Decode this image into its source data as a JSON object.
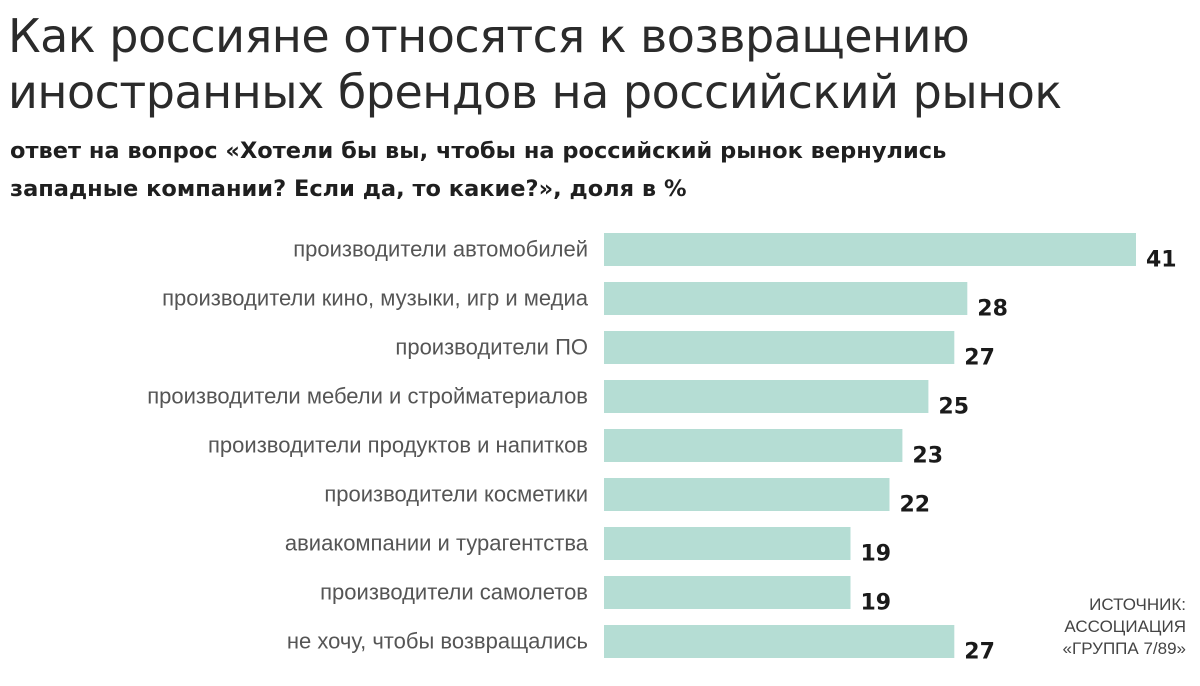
{
  "header": {
    "title_line1": "Как россияне относятся к возвращению",
    "title_line2": "иностранных брендов на российский рынок",
    "subtitle_line1": "ответ на вопрос «Хотели бы вы, чтобы на российский рынок вернулись",
    "subtitle_line2": "западные компании? Если да, то какие?», доля в %"
  },
  "source": {
    "line1": "ИСТОЧНИК:",
    "line2": "АССОЦИАЦИЯ",
    "line3": "«ГРУППА 7/89»"
  },
  "colors": {
    "bar": "#b5ddd4",
    "label": "#555555",
    "value": "#1a1a1a"
  },
  "chart_data": {
    "type": "bar",
    "orientation": "horizontal",
    "categories": [
      "производители автомобилей",
      "производители кино, музыки, игр и медиа",
      "производители ПО",
      "производители мебели и стройматериалов",
      "производители продуктов и напитков",
      "производители косметики",
      "авиакомпании и турагентства",
      "производители самолетов",
      "не хочу, чтобы возвращались"
    ],
    "values": [
      41,
      28,
      27,
      25,
      23,
      22,
      19,
      19,
      27
    ],
    "xlim": [
      0,
      41
    ],
    "grid": false,
    "legend": "none"
  }
}
